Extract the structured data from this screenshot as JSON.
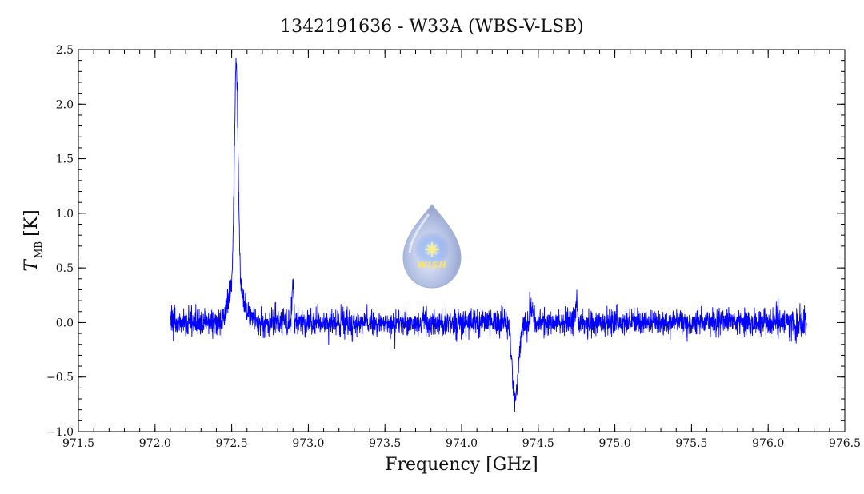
{
  "chart_data": {
    "type": "line",
    "title": "1342191636 - W33A (WBS-V-LSB)",
    "xlabel": "Frequency [GHz]",
    "ylabel_main": "T",
    "ylabel_sub": "MB",
    "ylabel_unit": "[K]",
    "xlim": [
      971.5,
      976.5
    ],
    "ylim": [
      -1.0,
      2.5
    ],
    "xticks": [
      971.5,
      972.0,
      972.5,
      973.0,
      973.5,
      974.0,
      974.5,
      975.0,
      975.5,
      976.0,
      976.5
    ],
    "xtick_labels": [
      "971.5",
      "972.0",
      "972.5",
      "973.0",
      "973.5",
      "974.0",
      "974.5",
      "975.0",
      "975.5",
      "976.0",
      "976.5"
    ],
    "yticks": [
      -1.0,
      -0.5,
      0.0,
      0.5,
      1.0,
      1.5,
      2.0,
      2.5
    ],
    "ytick_labels": [
      "−1.0",
      "−0.5",
      "0.0",
      "0.5",
      "1.0",
      "1.5",
      "2.0",
      "2.5"
    ],
    "x_minor_step": 0.1,
    "y_minor_step": 0.1,
    "grid": false,
    "series": [
      {
        "color": "#0000ff",
        "x_range": [
          972.1,
          976.25
        ],
        "noise_rms": 0.06,
        "features": [
          {
            "center": 972.53,
            "amplitude": 1.95,
            "width": 0.012
          },
          {
            "center": 972.53,
            "amplitude": 0.4,
            "width": 0.04
          },
          {
            "center": 972.9,
            "amplitude": 0.38,
            "width": 0.006
          },
          {
            "center": 974.35,
            "amplitude": -0.72,
            "width": 0.02
          },
          {
            "center": 974.46,
            "amplitude": 0.15,
            "width": 0.01
          },
          {
            "center": 974.75,
            "amplitude": 0.2,
            "width": 0.006
          }
        ]
      }
    ]
  },
  "logo": {
    "text": "WISH",
    "body_color": "#b9c6e8",
    "star_color": "#fff27a"
  }
}
